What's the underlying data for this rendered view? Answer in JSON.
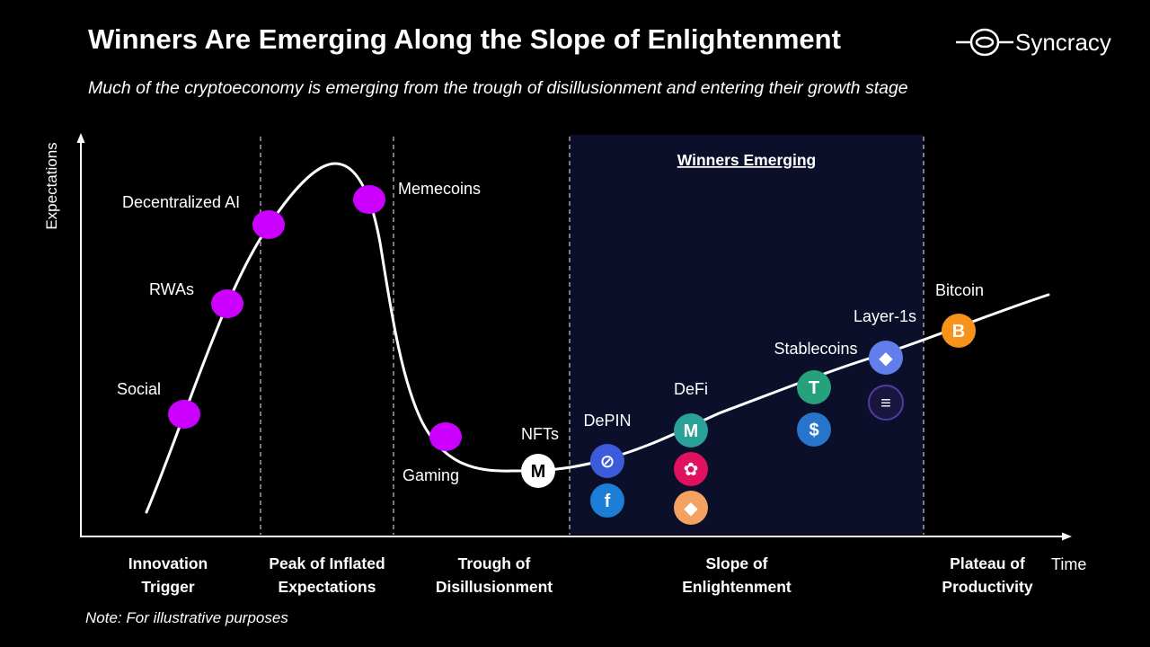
{
  "title": "Winners Are Emerging Along the Slope of Enlightenment",
  "subtitle": "Much of the cryptoeconomy is emerging from the trough of disillusionment and entering their growth stage",
  "brand": {
    "name": "Syncracy"
  },
  "note": "Note: For illustrative purposes",
  "chart_data": {
    "type": "line",
    "title": "Winners Are Emerging Along the Slope of Enlightenment",
    "xlabel": "Time",
    "ylabel": "Expectations",
    "highlight_label": "Winners Emerging",
    "phases": [
      {
        "lines": [
          "Innovation",
          "Trigger"
        ]
      },
      {
        "lines": [
          "Peak of Inflated",
          "Expectations"
        ]
      },
      {
        "lines": [
          "Trough of",
          "Disillusionment"
        ]
      },
      {
        "lines": [
          "Slope of",
          "Enlightenment"
        ]
      },
      {
        "lines": [
          "Plateau of",
          "Productivity"
        ]
      }
    ],
    "points": [
      {
        "label": "Social",
        "phase": "Innovation Trigger",
        "style": "dot"
      },
      {
        "label": "RWAs",
        "phase": "Innovation Trigger",
        "style": "dot"
      },
      {
        "label": "Decentralized AI",
        "phase": "Peak of Inflated Expectations",
        "style": "dot"
      },
      {
        "label": "Memecoins",
        "phase": "Peak of Inflated Expectations",
        "style": "dot"
      },
      {
        "label": "Gaming",
        "phase": "Trough of Disillusionment",
        "style": "dot"
      },
      {
        "label": "NFTs",
        "phase": "Trough of Disillusionment",
        "style": "logo"
      },
      {
        "label": "DePIN",
        "phase": "Slope of Enlightenment",
        "style": "logo"
      },
      {
        "label": "DeFi",
        "phase": "Slope of Enlightenment",
        "style": "logo"
      },
      {
        "label": "Stablecoins",
        "phase": "Slope of Enlightenment",
        "style": "logo"
      },
      {
        "label": "Layer-1s",
        "phase": "Slope of Enlightenment",
        "style": "logo"
      },
      {
        "label": "Bitcoin",
        "phase": "Plateau of Productivity",
        "style": "logo"
      }
    ],
    "colors": {
      "dot": "#cc00ff",
      "background": "#000000",
      "highlight": "#0b0f2a",
      "curve": "#ffffff",
      "bitcoin": "#f7931a"
    }
  }
}
